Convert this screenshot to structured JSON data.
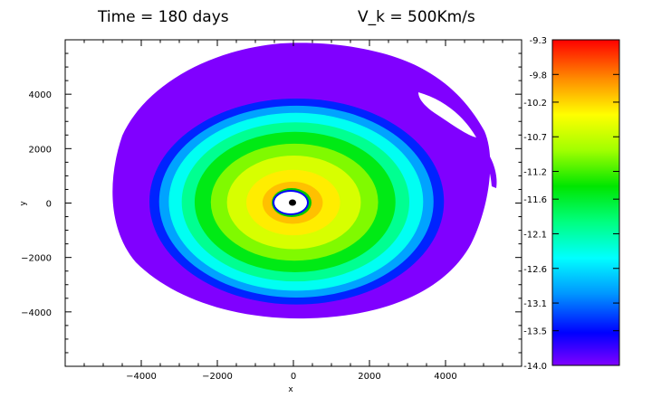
{
  "chart_data": {
    "type": "heatmap",
    "title_left": "Time = 180 days",
    "title_right": "V_k = 500Km/s",
    "xlabel": "x",
    "ylabel": "y",
    "xlim": [
      -6000,
      6000
    ],
    "ylim": [
      -6000,
      6000
    ],
    "xticks": [
      {
        "value": -4000,
        "label": "−4000"
      },
      {
        "value": -2000,
        "label": "−2000"
      },
      {
        "value": 0,
        "label": "0"
      },
      {
        "value": 2000,
        "label": "2000"
      },
      {
        "value": 4000,
        "label": "4000"
      }
    ],
    "yticks": [
      {
        "value": -4000,
        "label": "−4000"
      },
      {
        "value": -2000,
        "label": "−2000"
      },
      {
        "value": 0,
        "label": "0"
      },
      {
        "value": 2000,
        "label": "2000"
      },
      {
        "value": 4000,
        "label": "4000"
      }
    ],
    "colorbar": {
      "min": -14.0,
      "max": -9.3,
      "ticks": [
        "-9.3",
        "-9.8",
        "-10.2",
        "-10.7",
        "-11.2",
        "-11.6",
        "-12.1",
        "-12.6",
        "-13.1",
        "-13.5",
        "-14.0"
      ],
      "tick_values": [
        -9.3,
        -9.8,
        -10.2,
        -10.7,
        -11.2,
        -11.6,
        -12.1,
        -12.6,
        -13.1,
        -13.5,
        -14.0
      ],
      "colors": [
        "#ff0000",
        "#ff7f00",
        "#ffe600",
        "#7fff00",
        "#00e600",
        "#00ffcc",
        "#00ffff",
        "#0096ff",
        "#0000ff",
        "#7f00ff"
      ]
    },
    "disk": {
      "center": [
        0,
        0
      ],
      "outer_radius_x": 4700,
      "outer_radius_y": 4200,
      "inner_hole_radius": 500,
      "levels": [
        {
          "radius": 4700,
          "value": -13.9
        },
        {
          "radius": 4400,
          "value": -13.4
        },
        {
          "radius": 4100,
          "value": -12.9
        },
        {
          "radius": 3800,
          "value": -12.4
        },
        {
          "radius": 3400,
          "value": -12.0
        },
        {
          "radius": 3000,
          "value": -11.5
        },
        {
          "radius": 2500,
          "value": -11.0
        },
        {
          "radius": 2000,
          "value": -10.6
        },
        {
          "radius": 1400,
          "value": -10.3
        },
        {
          "radius": 900,
          "value": -10.1
        }
      ]
    }
  }
}
